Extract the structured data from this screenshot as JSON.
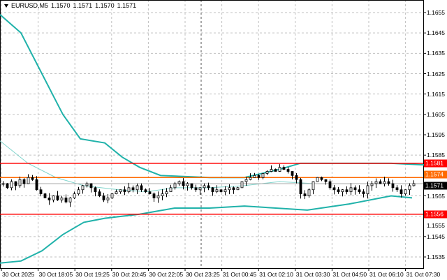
{
  "header": {
    "symbol": "EURUSD,M5",
    "open": "1.1570",
    "high": "1.1571",
    "low": "1.1570",
    "close": "1.1571"
  },
  "price_axis": [
    "1.1655",
    "1.1645",
    "1.1635",
    "1.1625",
    "1.1615",
    "1.1605",
    "1.1595",
    "1.1585",
    "1.1565",
    "1.1555",
    "1.1545",
    "1.1535"
  ],
  "time_axis": [
    "30 Oct 2025",
    "30 Oct 18:05",
    "30 Oct 19:25",
    "30 Oct 20:45",
    "30 Oct 22:05",
    "30 Oct 23:25",
    "31 Oct 00:45",
    "31 Oct 02:10",
    "31 Oct 03:30",
    "31 Oct 04:50",
    "31 Oct 06:10",
    "31 Oct 07:30"
  ],
  "levels": [
    {
      "price": 1.1581,
      "label": "1.1581",
      "color": "#ff0000"
    },
    {
      "price": 1.1574,
      "label": "1.1574",
      "color": "#ff6a00"
    },
    {
      "price": 1.1556,
      "label": "1.1556",
      "color": "#ff0000"
    }
  ],
  "bid": {
    "price": 1.1571,
    "label": "1.1571",
    "color": "#000000"
  },
  "colors": {
    "band": "#20b2aa",
    "ma": "#7fd4cc",
    "candle": "#000000",
    "grid": "#c0c0c0"
  },
  "closes": [
    1.1571,
    1.1569,
    1.1572,
    1.157,
    1.1573,
    1.1571,
    1.1574,
    1.1573,
    1.1568,
    1.1566,
    1.1564,
    1.1563,
    1.1565,
    1.1563,
    1.1564,
    1.1562,
    1.1564,
    1.1566,
    1.1568,
    1.157,
    1.1571,
    1.1569,
    1.1567,
    1.1565,
    1.1563,
    1.1564,
    1.1566,
    1.1567,
    1.1568,
    1.1567,
    1.1569,
    1.1568,
    1.157,
    1.1568,
    1.1567,
    1.1566,
    1.1564,
    1.1565,
    1.1566,
    1.1567,
    1.1569,
    1.1571,
    1.1572,
    1.157,
    1.1571,
    1.1569,
    1.1568,
    1.1569,
    1.157,
    1.1569,
    1.1567,
    1.1568,
    1.1567,
    1.1568,
    1.1569,
    1.1568,
    1.1569,
    1.1572,
    1.1573,
    1.1574,
    1.1575,
    1.1574,
    1.1576,
    1.1577,
    1.1578,
    1.1577,
    1.1579,
    1.1578,
    1.1577,
    1.1575,
    1.1573,
    1.1566,
    1.1565,
    1.1568,
    1.1572,
    1.1574,
    1.1573,
    1.1572,
    1.1569,
    1.1568,
    1.1567,
    1.1568,
    1.1567,
    1.1569,
    1.1568,
    1.1567,
    1.1566,
    1.157,
    1.1571,
    1.1572,
    1.1571,
    1.1572,
    1.1571,
    1.1569,
    1.1568,
    1.1566,
    1.1568,
    1.157,
    1.1571
  ],
  "upper_band": [
    [
      0,
      1.1654
    ],
    [
      30,
      1.1645
    ],
    [
      60,
      1.1625
    ],
    [
      90,
      1.1605
    ],
    [
      115,
      1.1593
    ],
    [
      150,
      1.1591
    ],
    [
      175,
      1.1584
    ],
    [
      200,
      1.1579
    ],
    [
      230,
      1.1575
    ],
    [
      300,
      1.1574
    ],
    [
      350,
      1.1574
    ],
    [
      400,
      1.1578
    ],
    [
      430,
      1.1581
    ],
    [
      500,
      1.1581
    ],
    [
      560,
      1.1581
    ],
    [
      620,
      1.158
    ]
  ],
  "middle_ma": [
    [
      0,
      1.1592
    ],
    [
      40,
      1.1581
    ],
    [
      80,
      1.1574
    ],
    [
      120,
      1.157
    ],
    [
      170,
      1.1568
    ],
    [
      210,
      1.1567
    ],
    [
      250,
      1.1569
    ],
    [
      300,
      1.1569
    ],
    [
      350,
      1.157
    ],
    [
      400,
      1.1572
    ],
    [
      450,
      1.1571
    ],
    [
      500,
      1.1571
    ],
    [
      560,
      1.1571
    ],
    [
      590,
      1.1571
    ]
  ],
  "lower_band": [
    [
      0,
      1.1532
    ],
    [
      30,
      1.1533
    ],
    [
      60,
      1.1538
    ],
    [
      90,
      1.1546
    ],
    [
      120,
      1.1552
    ],
    [
      150,
      1.1554
    ],
    [
      200,
      1.1556
    ],
    [
      250,
      1.1559
    ],
    [
      300,
      1.1559
    ],
    [
      350,
      1.156
    ],
    [
      440,
      1.1558
    ],
    [
      500,
      1.1561
    ],
    [
      560,
      1.1565
    ],
    [
      590,
      1.1564
    ]
  ]
}
